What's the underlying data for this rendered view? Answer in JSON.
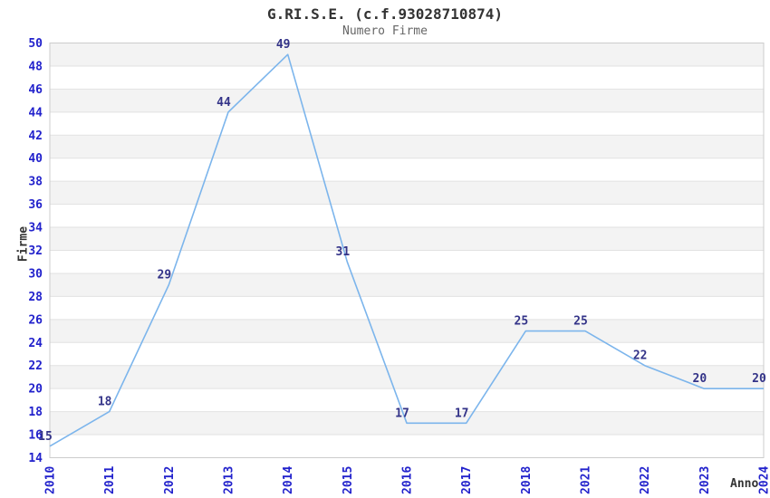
{
  "chart": {
    "title": "G.RI.S.E. (c.f.93028710874)",
    "subtitle": "Numero Firme",
    "ylabel": "Firme",
    "xlabel": "Anno"
  },
  "chart_data": {
    "type": "line",
    "title": "G.RI.S.E. (c.f.93028710874)",
    "subtitle": "Numero Firme",
    "xlabel": "Anno",
    "ylabel": "Firme",
    "categories": [
      "2010",
      "2011",
      "2012",
      "2013",
      "2014",
      "2015",
      "2016",
      "2017",
      "2018",
      "2021",
      "2022",
      "2023",
      "2024"
    ],
    "values": [
      15,
      18,
      29,
      44,
      49,
      31,
      17,
      17,
      25,
      25,
      22,
      20,
      20
    ],
    "ylim": [
      14,
      50
    ],
    "ytick_step": 2,
    "grid": true,
    "legend": "none",
    "colors": {
      "line": "#7cb5ec",
      "band_gray": "#f3f3f3",
      "band_white": "#ffffff",
      "gridline": "#e2e2e2",
      "plot_border": "#cccccc",
      "tick_label": "#2222cc",
      "data_label": "#333388",
      "title": "#333333",
      "subtitle": "#666666"
    }
  }
}
